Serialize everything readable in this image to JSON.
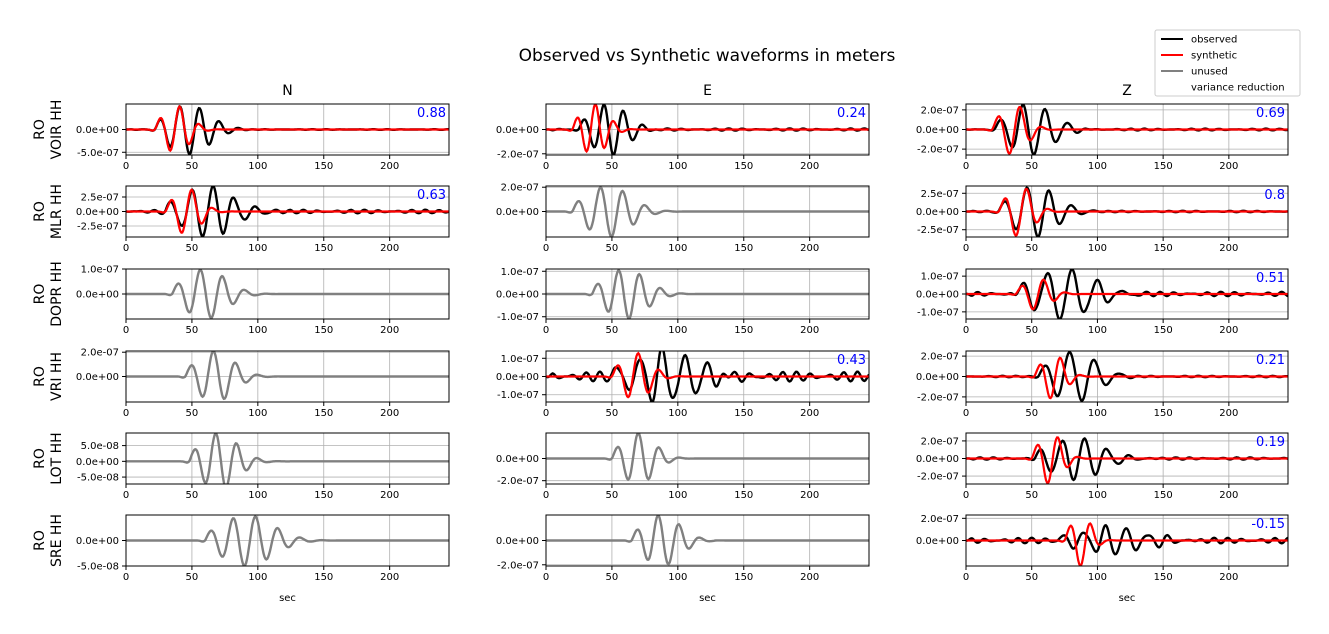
{
  "chart_data": {
    "type": "line",
    "title": "Observed vs Synthetic waveforms in meters",
    "columns": [
      "N",
      "E",
      "Z"
    ],
    "xlabel": "sec",
    "xlim": [
      0,
      245
    ],
    "xticks": [
      0,
      50,
      100,
      150,
      200
    ],
    "xtick_labels": [
      "0",
      "50",
      "100",
      "150",
      "200"
    ],
    "grid": true,
    "legend": {
      "placement": "top-right",
      "entries": [
        {
          "label": "observed",
          "color": "#000000"
        },
        {
          "label": "synthetic",
          "color": "#ff0000"
        },
        {
          "label": "unused",
          "color": "#808080"
        },
        {
          "label": "variance reduction",
          "color": "#0000ff"
        }
      ]
    },
    "colors": {
      "observed": "#000000",
      "synthetic": "#ff0000",
      "unused": "#808080",
      "variance_reduction": "#0000ff",
      "grid": "#b0b0b0"
    },
    "rows": [
      {
        "label_line1": "RO",
        "label_line2": "VOIR HH",
        "panels": [
          {
            "component": "N",
            "used": true,
            "vr": "0.88",
            "ylim": [
              -5.6e-07,
              5.6e-07
            ],
            "yticks": [
              0,
              -5e-07
            ],
            "ytick_labels": [
              "0.0e+00",
              "-5.0e-07"
            ],
            "obs": {
              "t0": 22,
              "period": 15,
              "amp": 5.5e-07,
              "decay": 28,
              "noise": 0.04
            },
            "syn": {
              "t0": 22,
              "period": 15,
              "amp": 5.2e-07,
              "decay": 18,
              "noise": 0.0
            }
          },
          {
            "component": "E",
            "used": true,
            "vr": "0.24",
            "ylim": [
              -2.1e-07,
              2.1e-07
            ],
            "yticks": [
              0,
              -2e-07
            ],
            "ytick_labels": [
              "0.0e+00",
              "-2.0e-07"
            ],
            "obs": {
              "t0": 25,
              "period": 15,
              "amp": 2.1e-07,
              "decay": 25,
              "noise": 0.12
            },
            "syn": {
              "t0": 20,
              "period": 14,
              "amp": 2.1e-07,
              "decay": 18,
              "noise": 0.0
            }
          },
          {
            "component": "Z",
            "used": true,
            "vr": "0.69",
            "ylim": [
              -2.6e-07,
              2.6e-07
            ],
            "yticks": [
              2e-07,
              0,
              -2e-07
            ],
            "ytick_labels": [
              "2.0e-07",
              "0.0e+00",
              "-2.0e-07"
            ],
            "obs": {
              "t0": 22,
              "period": 17,
              "amp": 2.6e-07,
              "decay": 30,
              "noise": 0.1
            },
            "syn": {
              "t0": 20,
              "period": 17,
              "amp": 2.6e-07,
              "decay": 18,
              "noise": 0.0
            }
          }
        ]
      },
      {
        "label_line1": "RO",
        "label_line2": "MLR HH",
        "panels": [
          {
            "component": "N",
            "used": true,
            "vr": "0.63",
            "ylim": [
              -4.4e-07,
              4.4e-07
            ],
            "yticks": [
              2.5e-07,
              0,
              -2.5e-07
            ],
            "ytick_labels": [
              "2.5e-07",
              "0.0e+00",
              "-2.5e-07"
            ],
            "obs": {
              "t0": 30,
              "period": 16,
              "amp": 4.4e-07,
              "decay": 35,
              "noise": 0.2
            },
            "syn": {
              "t0": 30,
              "period": 16,
              "amp": 4e-07,
              "decay": 18,
              "noise": 0.0
            }
          },
          {
            "component": "E",
            "used": false,
            "vr": "",
            "ylim": [
              -2.1e-07,
              2.1e-07
            ],
            "yticks": [
              2e-07,
              0
            ],
            "ytick_labels": [
              "2.0e-07",
              "0.0e+00"
            ],
            "obs": {
              "t0": 20,
              "period": 17,
              "amp": 2.1e-07,
              "decay": 30,
              "noise": 0.0
            }
          },
          {
            "component": "Z",
            "used": true,
            "vr": "0.8",
            "ylim": [
              -3.5e-07,
              3.5e-07
            ],
            "yticks": [
              2.5e-07,
              0,
              -2.5e-07
            ],
            "ytick_labels": [
              "2.5e-07",
              "0.0e+00",
              "-2.5e-07"
            ],
            "obs": {
              "t0": 25,
              "period": 17,
              "amp": 3.5e-07,
              "decay": 30,
              "noise": 0.08
            },
            "syn": {
              "t0": 25,
              "period": 17,
              "amp": 3.5e-07,
              "decay": 18,
              "noise": 0.0
            }
          }
        ]
      },
      {
        "label_line1": "RO",
        "label_line2": "DOPR HH",
        "panels": [
          {
            "component": "N",
            "used": false,
            "vr": "",
            "ylim": [
              -1e-07,
              1e-07
            ],
            "yticks": [
              1e-07,
              0
            ],
            "ytick_labels": [
              "1.0e-07",
              "0.0e+00"
            ],
            "obs": {
              "t0": 35,
              "period": 17,
              "amp": 1e-07,
              "decay": 28,
              "noise": 0.0
            }
          },
          {
            "component": "E",
            "used": false,
            "vr": "",
            "ylim": [
              -1.1e-07,
              1.1e-07
            ],
            "yticks": [
              1e-07,
              0,
              -1e-07
            ],
            "ytick_labels": [
              "1.0e-07",
              "0.0e+00",
              "-1.0e-07"
            ],
            "obs": {
              "t0": 35,
              "period": 16,
              "amp": 1.1e-07,
              "decay": 28,
              "noise": 0.0
            }
          },
          {
            "component": "Z",
            "used": true,
            "vr": "0.51",
            "ylim": [
              -1.4e-07,
              1.4e-07
            ],
            "yticks": [
              1e-07,
              0,
              -1e-07
            ],
            "ytick_labels": [
              "1.0e-07",
              "0.0e+00",
              "-1.0e-07"
            ],
            "obs": {
              "t0": 38,
              "period": 19,
              "amp": 1.4e-07,
              "decay": 40,
              "noise": 0.25
            },
            "syn": {
              "t0": 38,
              "period": 17,
              "amp": 9e-08,
              "decay": 18,
              "noise": 0.0
            }
          }
        ]
      },
      {
        "label_line1": "RO",
        "label_line2": "VRI HH",
        "panels": [
          {
            "component": "N",
            "used": false,
            "vr": "",
            "ylim": [
              -2.1e-07,
              2.1e-07
            ],
            "yticks": [
              2e-07,
              0
            ],
            "ytick_labels": [
              "2.0e-07",
              "0.0e+00"
            ],
            "obs": {
              "t0": 45,
              "period": 17,
              "amp": 2.1e-07,
              "decay": 25,
              "noise": 0.0
            }
          },
          {
            "component": "E",
            "used": true,
            "vr": "0.43",
            "ylim": [
              -1.4e-07,
              1.4e-07
            ],
            "yticks": [
              1e-07,
              0,
              -1e-07
            ],
            "ytick_labels": [
              "1.0e-07",
              "0.0e+00",
              "-1.0e-07"
            ],
            "obs": {
              "t0": 50,
              "period": 17,
              "amp": 1.4e-07,
              "decay": 45,
              "noise": 0.55
            },
            "syn": {
              "t0": 50,
              "period": 16,
              "amp": 1.3e-07,
              "decay": 20,
              "noise": 0.0
            }
          },
          {
            "component": "Z",
            "used": true,
            "vr": "0.21",
            "ylim": [
              -2.5e-07,
              2.5e-07
            ],
            "yticks": [
              2e-07,
              0,
              -2e-07
            ],
            "ytick_labels": [
              "2.0e-07",
              "0.0e+00",
              "-2.0e-07"
            ],
            "obs": {
              "t0": 55,
              "period": 19,
              "amp": 2.5e-07,
              "decay": 30,
              "noise": 0.08
            },
            "syn": {
              "t0": 52,
              "period": 16,
              "amp": 2.2e-07,
              "decay": 16,
              "noise": 0.0
            }
          }
        ]
      },
      {
        "label_line1": "RO",
        "label_line2": "LOT HH",
        "panels": [
          {
            "component": "N",
            "used": false,
            "vr": "",
            "ylim": [
              -7.2e-08,
              9e-08
            ],
            "yticks": [
              5e-08,
              0,
              -5e-08
            ],
            "ytick_labels": [
              "5.0e-08",
              "0.0e+00",
              "-5.0e-08"
            ],
            "obs": {
              "t0": 48,
              "period": 16,
              "amp": 9e-08,
              "decay": 25,
              "noise": 0.0
            }
          },
          {
            "component": "E",
            "used": false,
            "vr": "",
            "ylim": [
              -2.3e-07,
              2.3e-07
            ],
            "yticks": [
              0,
              -2e-07
            ],
            "ytick_labels": [
              "0.0e+00",
              "-2.0e-07"
            ],
            "obs": {
              "t0": 50,
              "period": 16,
              "amp": 2.3e-07,
              "decay": 22,
              "noise": 0.0
            }
          },
          {
            "component": "Z",
            "used": true,
            "vr": "0.19",
            "ylim": [
              -2.9e-07,
              2.9e-07
            ],
            "yticks": [
              2e-07,
              0,
              -2e-07
            ],
            "ytick_labels": [
              "2.0e-07",
              "0.0e+00",
              "-2.0e-07"
            ],
            "obs": {
              "t0": 52,
              "period": 17,
              "amp": 2.4e-07,
              "decay": 35,
              "noise": 0.15
            },
            "syn": {
              "t0": 50,
              "period": 16,
              "amp": 2.9e-07,
              "decay": 16,
              "noise": 0.0
            }
          }
        ]
      },
      {
        "label_line1": "RO",
        "label_line2": "SRE HH",
        "panels": [
          {
            "component": "N",
            "used": false,
            "vr": "",
            "ylim": [
              -5e-08,
              5e-08
            ],
            "yticks": [
              0,
              -5e-08
            ],
            "ytick_labels": [
              "0.0e+00",
              "-5.0e-08"
            ],
            "obs": {
              "t0": 60,
              "period": 17,
              "amp": 5e-08,
              "decay": 35,
              "noise": 0.0
            }
          },
          {
            "component": "E",
            "used": false,
            "vr": "",
            "ylim": [
              -2.1e-07,
              2.1e-07
            ],
            "yticks": [
              0,
              -2e-07
            ],
            "ytick_labels": [
              "0.0e+00",
              "-2.0e-07"
            ],
            "obs": {
              "t0": 65,
              "period": 16,
              "amp": 2.1e-07,
              "decay": 25,
              "noise": 0.0
            }
          },
          {
            "component": "Z",
            "used": true,
            "vr": "-0.15",
            "ylim": [
              -2.3e-07,
              2.3e-07
            ],
            "yticks": [
              2e-07,
              0
            ],
            "ytick_labels": [
              "2.0e-07",
              "0.0e+00"
            ],
            "obs": {
              "t0": 70,
              "period": 16,
              "amp": 1.2e-07,
              "decay": 45,
              "noise": 0.6
            },
            "syn": {
              "t0": 75,
              "period": 16,
              "amp": 2.3e-07,
              "decay": 14,
              "noise": 0.0
            }
          }
        ]
      }
    ]
  }
}
